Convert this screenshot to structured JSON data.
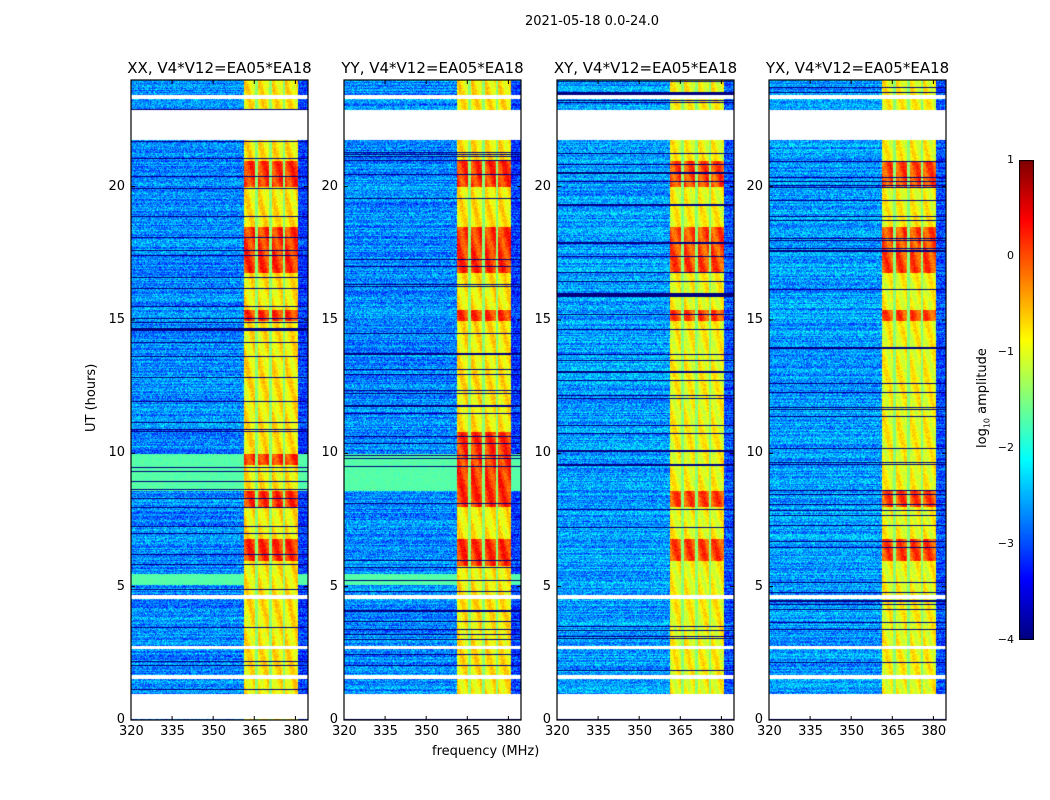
{
  "chart_data": {
    "type": "heatmap",
    "title": "2021-05-18 0.0-24.0",
    "xlabel": "frequency (MHz)",
    "ylabel": "UT (hours)",
    "xlim": [
      320,
      384.6
    ],
    "ylim": [
      0,
      24
    ],
    "xticks": [
      320,
      335,
      350,
      365,
      380
    ],
    "yticks": [
      0,
      5,
      10,
      15,
      20
    ],
    "colormap": "jet",
    "colorbar": {
      "label": "log",
      "label_sub": "10",
      "label_rest": " amplitude",
      "range": [
        -4,
        1
      ],
      "ticks": [
        1,
        0,
        -1,
        -2,
        -3,
        -4
      ],
      "tick_labels": [
        "1",
        "0",
        "−1",
        "−2",
        "−3",
        "−4"
      ]
    },
    "panels": [
      {
        "title": "XX, V4*V12=EA05*EA18",
        "base_level": -2.7,
        "band_level": -0.8,
        "strong_hours": [
          [
            6.0,
            6.8
          ],
          [
            8.0,
            8.6
          ],
          [
            9.6,
            10.0
          ],
          [
            15.0,
            15.4
          ],
          [
            16.8,
            18.5
          ],
          [
            20.0,
            21.0
          ]
        ]
      },
      {
        "title": "YY, V4*V12=EA05*EA18",
        "base_level": -2.7,
        "band_level": -0.8,
        "strong_hours": [
          [
            5.8,
            6.8
          ],
          [
            8.0,
            9.6
          ],
          [
            9.6,
            10.8
          ],
          [
            15.0,
            15.4
          ],
          [
            16.8,
            18.5
          ],
          [
            20.0,
            21.0
          ]
        ]
      },
      {
        "title": "XY, V4*V12=EA05*EA18",
        "base_level": -2.6,
        "band_level": -0.9,
        "strong_hours": [
          [
            6.0,
            6.8
          ],
          [
            8.0,
            8.6
          ],
          [
            15.0,
            15.4
          ],
          [
            16.8,
            18.5
          ],
          [
            20.0,
            21.0
          ]
        ]
      },
      {
        "title": "YX, V4*V12=EA05*EA18",
        "base_level": -2.6,
        "band_level": -0.9,
        "strong_hours": [
          [
            6.0,
            6.8
          ],
          [
            8.0,
            8.6
          ],
          [
            15.0,
            15.4
          ],
          [
            16.8,
            18.5
          ],
          [
            20.0,
            21.0
          ]
        ]
      }
    ],
    "rfi_band_mhz": [
      360.9,
      380.6
    ],
    "rfi_subband_gaps_mhz": [
      365.6,
      370.7,
      375.8
    ],
    "flagged_hours": [
      [
        0.06,
        1.0
      ],
      [
        1.55,
        1.7
      ],
      [
        2.7,
        2.8
      ],
      [
        4.55,
        4.7
      ],
      [
        21.76,
        22.9
      ],
      [
        23.3,
        23.45
      ]
    ],
    "green_hours": [
      [
        8.6,
        10.0
      ],
      [
        5.1,
        5.5
      ]
    ]
  }
}
